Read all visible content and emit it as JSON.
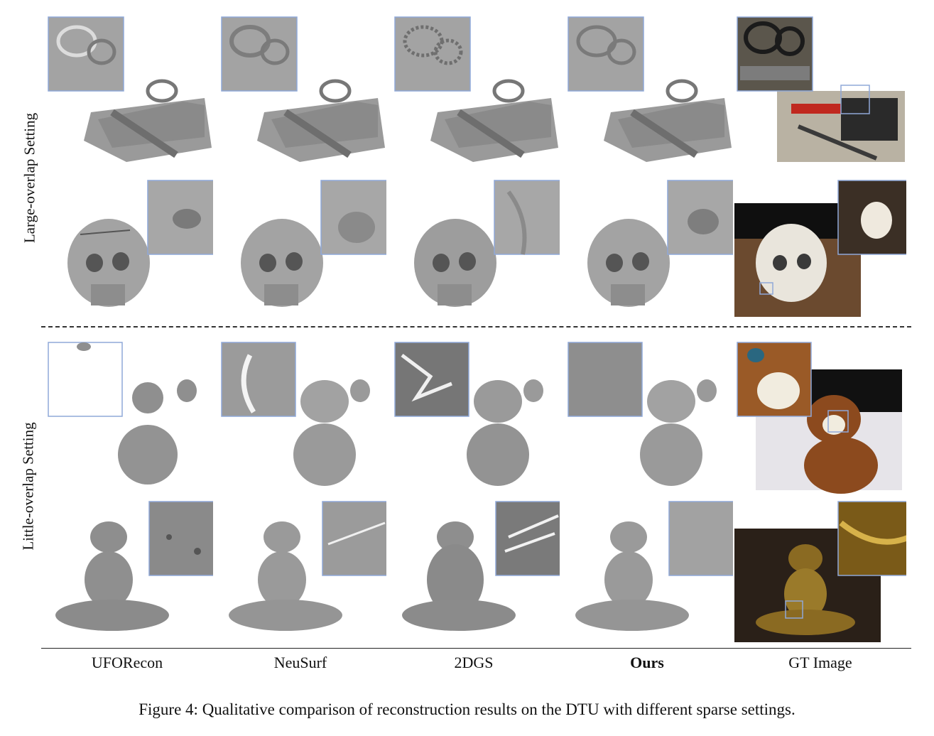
{
  "row_labels": {
    "large": "Large-overlap Setting",
    "little": "Little-overlap Setting"
  },
  "methods": [
    "UFORecon",
    "NeuSurf",
    "2DGS",
    "Ours",
    "GT Image"
  ],
  "caption": "Figure 4: Qualitative comparison of reconstruction results on the DTU with different sparse settings.",
  "colors": {
    "mesh_gray": "#8f8f8f",
    "inset_border": "#8fa8d8",
    "divider": "#333333"
  }
}
